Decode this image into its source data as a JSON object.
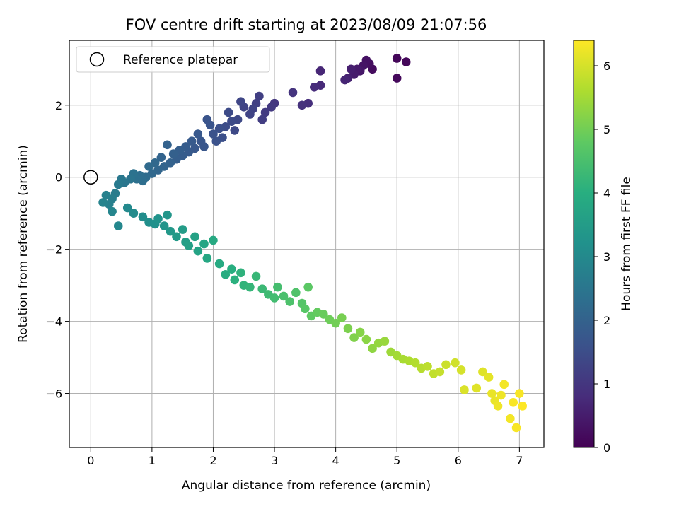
{
  "chart_data": {
    "type": "scatter",
    "title": "FOV centre drift starting at 2023/08/09 21:07:56",
    "xlabel": "Angular distance from reference (arcmin)",
    "ylabel": "Rotation from reference (arcmin)",
    "xlim": [
      -0.35,
      7.4
    ],
    "ylim": [
      -7.5,
      3.8
    ],
    "xticks": [
      0,
      1,
      2,
      3,
      4,
      5,
      6,
      7
    ],
    "yticks": [
      -6,
      -4,
      -2,
      0,
      2
    ],
    "grid": true,
    "legend": {
      "position": "top-left",
      "entries": [
        {
          "label": "Reference platepar",
          "marker": "open-circle"
        }
      ]
    },
    "reference_point": {
      "x": 0,
      "y": 0
    },
    "colorbar": {
      "label": "Hours from first FF file",
      "range": [
        0,
        6.4
      ],
      "ticks": [
        0,
        1,
        2,
        3,
        4,
        5,
        6
      ],
      "colormap": "viridis"
    },
    "series": [
      {
        "points": [
          [
            5.0,
            3.3,
            0.1
          ],
          [
            5.15,
            3.2,
            0.1
          ],
          [
            5.0,
            2.75,
            0.15
          ],
          [
            4.6,
            3.0,
            0.2
          ],
          [
            4.55,
            3.15,
            0.25
          ],
          [
            4.5,
            3.25,
            0.3
          ],
          [
            4.45,
            3.1,
            0.35
          ],
          [
            4.4,
            2.95,
            0.4
          ],
          [
            4.35,
            3.0,
            0.45
          ],
          [
            4.3,
            2.85,
            0.5
          ],
          [
            4.25,
            3.0,
            0.55
          ],
          [
            4.2,
            2.75,
            0.6
          ],
          [
            4.15,
            2.7,
            0.65
          ],
          [
            3.75,
            2.95,
            0.7
          ],
          [
            3.75,
            2.55,
            0.75
          ],
          [
            3.65,
            2.5,
            0.8
          ],
          [
            3.55,
            2.05,
            0.85
          ],
          [
            3.45,
            2.0,
            0.9
          ],
          [
            3.3,
            2.35,
            0.95
          ],
          [
            3.0,
            2.05,
            1.0
          ],
          [
            2.95,
            1.95,
            1.05
          ],
          [
            2.85,
            1.8,
            1.1
          ],
          [
            2.8,
            1.6,
            1.15
          ],
          [
            2.75,
            2.25,
            1.2
          ],
          [
            2.7,
            2.05,
            1.2
          ],
          [
            2.65,
            1.9,
            1.25
          ],
          [
            2.6,
            1.75,
            1.3
          ],
          [
            2.5,
            1.95,
            1.3
          ],
          [
            2.45,
            2.1,
            1.35
          ],
          [
            2.4,
            1.6,
            1.4
          ],
          [
            2.35,
            1.3,
            1.4
          ],
          [
            2.3,
            1.55,
            1.45
          ],
          [
            2.25,
            1.8,
            1.45
          ],
          [
            2.2,
            1.4,
            1.5
          ],
          [
            2.15,
            1.1,
            1.55
          ],
          [
            2.1,
            1.35,
            1.55
          ],
          [
            2.05,
            1.0,
            1.6
          ],
          [
            2.0,
            1.2,
            1.6
          ],
          [
            1.95,
            1.45,
            1.65
          ],
          [
            1.9,
            1.6,
            1.65
          ],
          [
            1.85,
            0.85,
            1.7
          ],
          [
            1.8,
            1.0,
            1.7
          ],
          [
            1.75,
            1.2,
            1.75
          ],
          [
            1.7,
            0.8,
            1.75
          ],
          [
            1.65,
            1.0,
            1.8
          ],
          [
            1.6,
            0.7,
            1.8
          ],
          [
            1.55,
            0.85,
            1.85
          ],
          [
            1.5,
            0.6,
            1.85
          ],
          [
            1.45,
            0.75,
            1.9
          ],
          [
            1.4,
            0.5,
            1.9
          ],
          [
            1.35,
            0.65,
            1.95
          ],
          [
            1.3,
            0.4,
            2.0
          ],
          [
            1.25,
            0.9,
            2.0
          ],
          [
            1.2,
            0.3,
            2.05
          ],
          [
            1.15,
            0.55,
            2.05
          ],
          [
            1.1,
            0.2,
            2.1
          ],
          [
            1.05,
            0.4,
            2.15
          ],
          [
            1.0,
            0.1,
            2.15
          ],
          [
            0.95,
            0.3,
            2.2
          ],
          [
            0.9,
            0.0,
            2.25
          ],
          [
            0.85,
            -0.1,
            2.3
          ],
          [
            0.8,
            0.05,
            2.3
          ],
          [
            0.75,
            -0.05,
            2.35
          ],
          [
            0.7,
            0.1,
            2.4
          ],
          [
            0.65,
            -0.05,
            2.45
          ],
          [
            0.55,
            -0.15,
            2.5
          ],
          [
            0.5,
            -0.05,
            2.55
          ],
          [
            0.45,
            -0.2,
            2.6
          ],
          [
            0.4,
            -0.45,
            2.65
          ],
          [
            0.35,
            -0.6,
            2.7
          ],
          [
            0.3,
            -0.75,
            2.75
          ],
          [
            0.25,
            -0.5,
            2.8
          ],
          [
            0.2,
            -0.7,
            2.85
          ],
          [
            0.35,
            -0.95,
            2.9
          ],
          [
            0.45,
            -1.35,
            2.95
          ],
          [
            0.6,
            -0.85,
            3.0
          ],
          [
            0.7,
            -1.0,
            3.05
          ],
          [
            0.85,
            -1.1,
            3.1
          ],
          [
            0.95,
            -1.25,
            3.15
          ],
          [
            1.05,
            -1.3,
            3.2
          ],
          [
            1.1,
            -1.15,
            3.25
          ],
          [
            1.2,
            -1.35,
            3.3
          ],
          [
            1.25,
            -1.05,
            3.35
          ],
          [
            1.3,
            -1.5,
            3.4
          ],
          [
            1.4,
            -1.65,
            3.45
          ],
          [
            1.5,
            -1.45,
            3.5
          ],
          [
            1.55,
            -1.8,
            3.55
          ],
          [
            1.6,
            -1.9,
            3.6
          ],
          [
            1.7,
            -1.65,
            3.65
          ],
          [
            1.75,
            -2.05,
            3.7
          ],
          [
            1.85,
            -1.85,
            3.75
          ],
          [
            1.9,
            -2.25,
            3.8
          ],
          [
            2.0,
            -1.75,
            3.85
          ],
          [
            2.1,
            -2.4,
            3.9
          ],
          [
            2.2,
            -2.7,
            3.95
          ],
          [
            2.3,
            -2.55,
            4.0
          ],
          [
            2.35,
            -2.85,
            4.05
          ],
          [
            2.45,
            -2.65,
            4.1
          ],
          [
            2.5,
            -3.0,
            4.15
          ],
          [
            2.6,
            -3.05,
            4.2
          ],
          [
            2.7,
            -2.75,
            4.25
          ],
          [
            2.8,
            -3.1,
            4.3
          ],
          [
            2.9,
            -3.25,
            4.35
          ],
          [
            3.0,
            -3.35,
            4.4
          ],
          [
            3.05,
            -3.05,
            4.45
          ],
          [
            3.15,
            -3.3,
            4.5
          ],
          [
            3.25,
            -3.45,
            4.55
          ],
          [
            3.35,
            -3.2,
            4.6
          ],
          [
            3.45,
            -3.5,
            4.65
          ],
          [
            3.5,
            -3.65,
            4.7
          ],
          [
            3.55,
            -3.05,
            4.75
          ],
          [
            3.6,
            -3.85,
            4.8
          ],
          [
            3.7,
            -3.75,
            4.85
          ],
          [
            3.8,
            -3.8,
            4.9
          ],
          [
            3.9,
            -3.95,
            4.95
          ],
          [
            4.0,
            -4.05,
            5.0
          ],
          [
            4.1,
            -3.9,
            5.05
          ],
          [
            4.2,
            -4.2,
            5.1
          ],
          [
            4.3,
            -4.45,
            5.15
          ],
          [
            4.4,
            -4.3,
            5.2
          ],
          [
            4.5,
            -4.5,
            5.25
          ],
          [
            4.6,
            -4.75,
            5.3
          ],
          [
            4.7,
            -4.6,
            5.35
          ],
          [
            4.8,
            -4.55,
            5.4
          ],
          [
            4.9,
            -4.85,
            5.45
          ],
          [
            5.0,
            -4.95,
            5.5
          ],
          [
            5.1,
            -5.05,
            5.55
          ],
          [
            5.2,
            -5.1,
            5.6
          ],
          [
            5.3,
            -5.15,
            5.65
          ],
          [
            5.4,
            -5.3,
            5.7
          ],
          [
            5.5,
            -5.25,
            5.75
          ],
          [
            5.6,
            -5.45,
            5.8
          ],
          [
            5.7,
            -5.4,
            5.85
          ],
          [
            5.8,
            -5.2,
            5.9
          ],
          [
            5.95,
            -5.15,
            5.95
          ],
          [
            6.05,
            -5.35,
            6.0
          ],
          [
            6.1,
            -5.9,
            6.05
          ],
          [
            6.3,
            -5.85,
            6.1
          ],
          [
            6.4,
            -5.4,
            6.1
          ],
          [
            6.5,
            -5.55,
            6.15
          ],
          [
            6.55,
            -6.0,
            6.2
          ],
          [
            6.6,
            -6.2,
            6.2
          ],
          [
            6.65,
            -6.35,
            6.25
          ],
          [
            6.7,
            -6.05,
            6.25
          ],
          [
            6.75,
            -5.75,
            6.3
          ],
          [
            6.85,
            -6.7,
            6.3
          ],
          [
            6.9,
            -6.25,
            6.35
          ],
          [
            6.95,
            -6.95,
            6.35
          ],
          [
            7.0,
            -6.0,
            6.35
          ],
          [
            7.05,
            -6.35,
            6.4
          ]
        ]
      }
    ]
  }
}
